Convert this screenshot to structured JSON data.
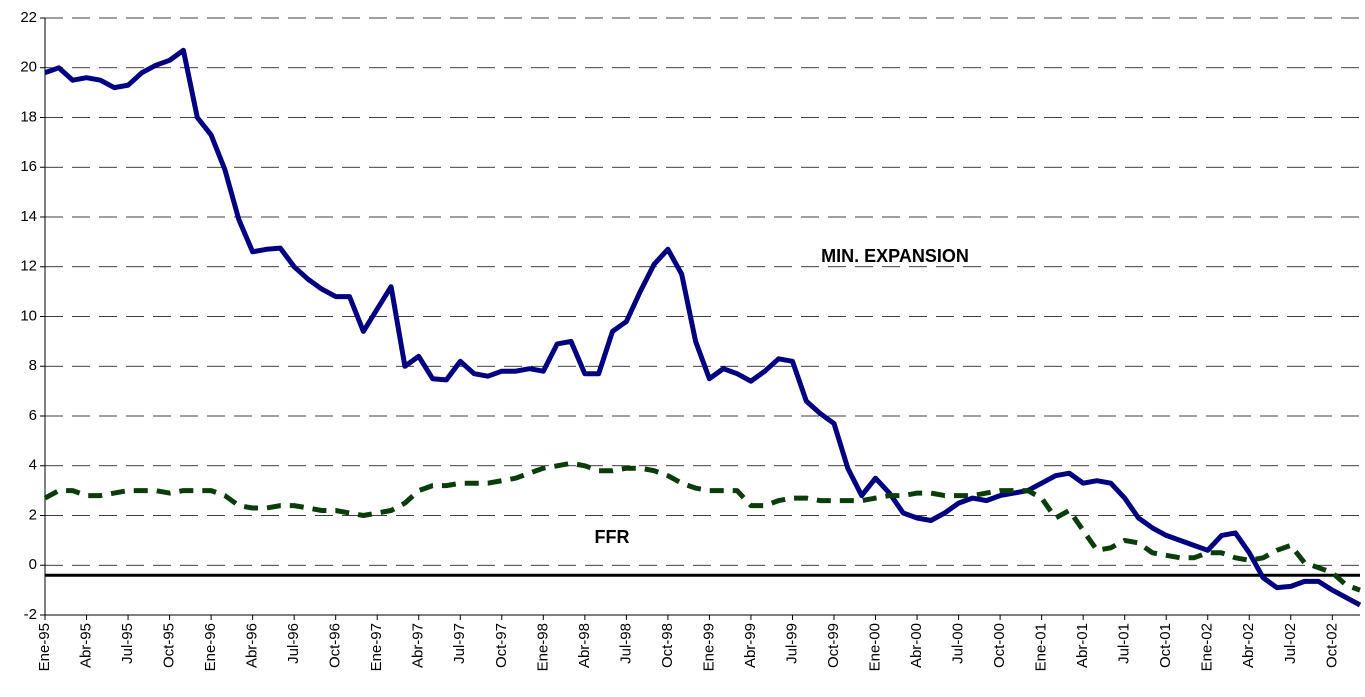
{
  "chart_data": {
    "type": "line",
    "categories": [
      "Ene-95",
      null,
      null,
      "Abr-95",
      null,
      null,
      "Jul-95",
      null,
      null,
      "Oct-95",
      null,
      null,
      "Ene-96",
      null,
      null,
      "Abr-96",
      null,
      null,
      "Jul-96",
      null,
      null,
      "Oct-96",
      null,
      null,
      "Ene-97",
      null,
      null,
      "Abr-97",
      null,
      null,
      "Jul-97",
      null,
      null,
      "Oct-97",
      null,
      null,
      "Ene-98",
      null,
      null,
      "Abr-98",
      null,
      null,
      "Jul-98",
      null,
      null,
      "Oct-98",
      null,
      null,
      "Ene-99",
      null,
      null,
      "Abr-99",
      null,
      null,
      "Jul-99",
      null,
      null,
      "Oct-99",
      null,
      null,
      "Ene-00",
      null,
      null,
      "Abr-00",
      null,
      null,
      "Jul-00",
      null,
      null,
      "Oct-00",
      null,
      null,
      "Ene-01",
      null,
      null,
      "Abr-01",
      null,
      null,
      "Jul-01",
      null,
      null,
      "Oct-01",
      null,
      null,
      "Ene-02",
      null,
      null,
      "Abr-02",
      null,
      null,
      "Jul-02",
      null,
      null,
      "Oct-02",
      null,
      null
    ],
    "series": [
      {
        "name": "MIN. EXPANSION",
        "color": "#000080",
        "dash": false,
        "values": [
          19.8,
          20.0,
          19.5,
          19.6,
          19.5,
          19.2,
          19.3,
          19.8,
          20.1,
          20.3,
          20.7,
          18.0,
          17.3,
          15.9,
          13.9,
          12.6,
          12.7,
          12.75,
          12.0,
          11.5,
          11.1,
          10.8,
          10.8,
          9.4,
          10.3,
          11.2,
          8.0,
          8.4,
          7.5,
          7.45,
          8.2,
          7.7,
          7.6,
          7.8,
          7.8,
          7.9,
          7.8,
          8.9,
          9.0,
          7.7,
          7.7,
          9.4,
          9.8,
          11.0,
          12.1,
          12.7,
          11.7,
          9.0,
          7.5,
          7.9,
          7.7,
          7.4,
          7.8,
          8.3,
          8.2,
          6.6,
          6.1,
          5.7,
          3.9,
          2.8,
          3.5,
          2.9,
          2.1,
          1.9,
          1.8,
          2.1,
          2.5,
          2.7,
          2.6,
          2.8,
          2.9,
          3.0,
          3.3,
          3.6,
          3.7,
          3.3,
          3.4,
          3.3,
          2.7,
          1.9,
          1.5,
          1.2,
          1.0,
          0.8,
          0.6,
          1.2,
          1.3,
          0.5,
          -0.5,
          -0.9,
          -0.85,
          -0.65,
          -0.65,
          -1.0,
          -1.3,
          -1.6
        ]
      },
      {
        "name": "FFR",
        "color": "#0b3d0b",
        "dash": true,
        "values": [
          2.7,
          3.0,
          3.0,
          2.8,
          2.8,
          2.9,
          3.0,
          3.0,
          3.0,
          2.9,
          3.0,
          3.0,
          3.0,
          2.8,
          2.4,
          2.3,
          2.3,
          2.4,
          2.4,
          2.3,
          2.2,
          2.2,
          2.1,
          2.0,
          2.1,
          2.2,
          2.5,
          3.0,
          3.2,
          3.2,
          3.3,
          3.3,
          3.3,
          3.4,
          3.5,
          3.7,
          3.9,
          4.0,
          4.1,
          4.0,
          3.8,
          3.8,
          3.9,
          3.9,
          3.8,
          3.6,
          3.3,
          3.1,
          3.0,
          3.0,
          3.0,
          2.4,
          2.4,
          2.6,
          2.7,
          2.7,
          2.6,
          2.6,
          2.6,
          2.6,
          2.7,
          2.8,
          2.8,
          2.9,
          2.9,
          2.8,
          2.8,
          2.8,
          2.9,
          3.0,
          3.0,
          3.0,
          2.7,
          1.9,
          2.2,
          1.4,
          0.6,
          0.7,
          1.0,
          0.9,
          0.5,
          0.4,
          0.3,
          0.3,
          0.5,
          0.5,
          0.3,
          0.2,
          0.3,
          0.6,
          0.8,
          0.1,
          -0.1,
          -0.3,
          -0.8,
          -1.0
        ]
      }
    ],
    "ylim": [
      -2,
      22
    ],
    "yticks": [
      -2,
      0,
      2,
      4,
      6,
      8,
      10,
      12,
      14,
      16,
      18,
      20,
      22
    ],
    "grid": true,
    "reference_line": -0.4
  }
}
